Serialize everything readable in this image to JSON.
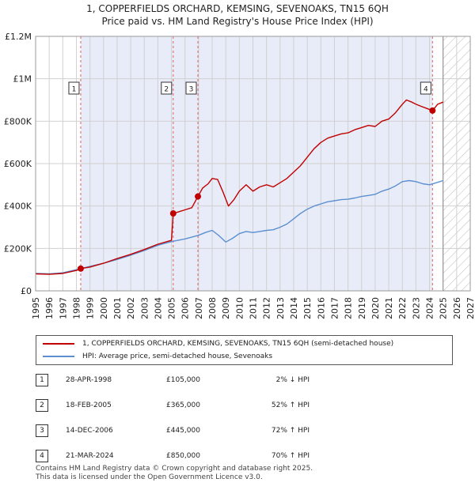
{
  "title": {
    "line1": "1, COPPERFIELDS ORCHARD, KEMSING, SEVENOAKS, TN15 6QH",
    "line2": "Price paid vs. HM Land Registry's House Price Index (HPI)"
  },
  "legend": {
    "property": "1, COPPERFIELDS ORCHARD, KEMSING, SEVENOAKS, TN15 6QH (semi-detached house)",
    "hpi": "HPI: Average price, semi-detached house, Sevenoaks"
  },
  "transactions": [
    {
      "num": "1",
      "date": "28-APR-1998",
      "price": "£105,000",
      "hpi": "2% ↓ HPI"
    },
    {
      "num": "2",
      "date": "18-FEB-2005",
      "price": "£365,000",
      "hpi": "52% ↑ HPI"
    },
    {
      "num": "3",
      "date": "14-DEC-2006",
      "price": "£445,000",
      "hpi": "72% ↑ HPI"
    },
    {
      "num": "4",
      "date": "21-MAR-2024",
      "price": "£850,000",
      "hpi": "70% ↑ HPI"
    }
  ],
  "footer": {
    "line1": "Contains HM Land Registry data © Crown copyright and database right 2025.",
    "line2": "This data is licensed under the Open Government Licence v3.0."
  },
  "colors": {
    "property": "#c00000",
    "hpi": "#5b8fd0",
    "shade": "#e8ecf8",
    "grid": "#d0d0d0",
    "marker_line": "#e06060"
  },
  "chart_data": {
    "type": "line",
    "xlim": [
      1995,
      2027
    ],
    "ylim": [
      0,
      1200000
    ],
    "x_ticks": [
      "1995",
      "1996",
      "1997",
      "1998",
      "1999",
      "2000",
      "2001",
      "2002",
      "2003",
      "2004",
      "2005",
      "2006",
      "2007",
      "2008",
      "2009",
      "2010",
      "2011",
      "2012",
      "2013",
      "2014",
      "2015",
      "2016",
      "2017",
      "2018",
      "2019",
      "2020",
      "2021",
      "2022",
      "2023",
      "2024",
      "2025",
      "2026",
      "2027"
    ],
    "y_ticks": [
      {
        "value": 0,
        "label": "£0"
      },
      {
        "value": 200000,
        "label": "£200K"
      },
      {
        "value": 400000,
        "label": "£400K"
      },
      {
        "value": 600000,
        "label": "£600K"
      },
      {
        "value": 800000,
        "label": "£800K"
      },
      {
        "value": 1000000,
        "label": "£1M"
      },
      {
        "value": 1200000,
        "label": "£1.2M"
      }
    ],
    "shaded_range": [
      1998.32,
      2024.22
    ],
    "forecast_from": 2025.0,
    "series": [
      {
        "name": "1, COPPERFIELDS ORCHARD, KEMSING, SEVENOAKS, TN15 6QH (semi-detached house)",
        "x": [
          1995.0,
          1996.0,
          1997.0,
          1998.0,
          1998.32,
          1999.0,
          2000.0,
          2001.0,
          2002.0,
          2003.0,
          2004.0,
          2005.0,
          2005.13,
          2005.5,
          2006.0,
          2006.5,
          2006.95,
          2007.3,
          2007.7,
          2008.0,
          2008.4,
          2008.8,
          2009.2,
          2009.6,
          2010.0,
          2010.5,
          2011.0,
          2011.5,
          2012.0,
          2012.5,
          2013.0,
          2013.5,
          2014.0,
          2014.5,
          2015.0,
          2015.5,
          2016.0,
          2016.5,
          2017.0,
          2017.5,
          2018.0,
          2018.5,
          2019.0,
          2019.5,
          2020.0,
          2020.5,
          2021.0,
          2021.5,
          2022.0,
          2022.3,
          2022.7,
          2023.0,
          2023.4,
          2023.8,
          2024.22,
          2024.6,
          2025.0
        ],
        "values": [
          80000,
          78000,
          82000,
          96000,
          105000,
          112000,
          130000,
          152000,
          172000,
          195000,
          220000,
          238000,
          365000,
          372000,
          382000,
          392000,
          445000,
          485000,
          505000,
          530000,
          525000,
          465000,
          400000,
          430000,
          470000,
          500000,
          470000,
          490000,
          500000,
          490000,
          510000,
          530000,
          560000,
          590000,
          630000,
          670000,
          700000,
          720000,
          730000,
          740000,
          745000,
          760000,
          770000,
          780000,
          775000,
          800000,
          810000,
          840000,
          880000,
          900000,
          890000,
          880000,
          870000,
          860000,
          850000,
          880000,
          890000
        ]
      },
      {
        "name": "HPI: Average price, semi-detached house, Sevenoaks",
        "x": [
          1995.0,
          1996.0,
          1997.0,
          1998.0,
          1999.0,
          2000.0,
          2001.0,
          2002.0,
          2003.0,
          2004.0,
          2005.0,
          2006.0,
          2007.0,
          2007.5,
          2008.0,
          2008.5,
          2009.0,
          2009.5,
          2010.0,
          2010.5,
          2011.0,
          2011.5,
          2012.0,
          2012.5,
          2013.0,
          2013.5,
          2014.0,
          2014.5,
          2015.0,
          2015.5,
          2016.0,
          2016.5,
          2017.0,
          2017.5,
          2018.0,
          2018.5,
          2019.0,
          2019.5,
          2020.0,
          2020.5,
          2021.0,
          2021.5,
          2022.0,
          2022.5,
          2023.0,
          2023.5,
          2024.0,
          2024.5,
          2025.0
        ],
        "values": [
          82000,
          80000,
          85000,
          100000,
          115000,
          130000,
          148000,
          168000,
          190000,
          215000,
          232000,
          245000,
          262000,
          275000,
          285000,
          260000,
          230000,
          248000,
          270000,
          280000,
          275000,
          280000,
          285000,
          288000,
          300000,
          315000,
          340000,
          365000,
          385000,
          400000,
          410000,
          420000,
          425000,
          430000,
          432000,
          438000,
          445000,
          450000,
          455000,
          470000,
          480000,
          495000,
          515000,
          520000,
          515000,
          505000,
          500000,
          510000,
          520000
        ]
      }
    ],
    "sales": [
      {
        "label": "1",
        "x": 1998.32,
        "value": 105000
      },
      {
        "label": "2",
        "x": 2005.13,
        "value": 365000
      },
      {
        "label": "3",
        "x": 2006.95,
        "value": 445000
      },
      {
        "label": "4",
        "x": 2024.22,
        "value": 850000
      }
    ]
  }
}
